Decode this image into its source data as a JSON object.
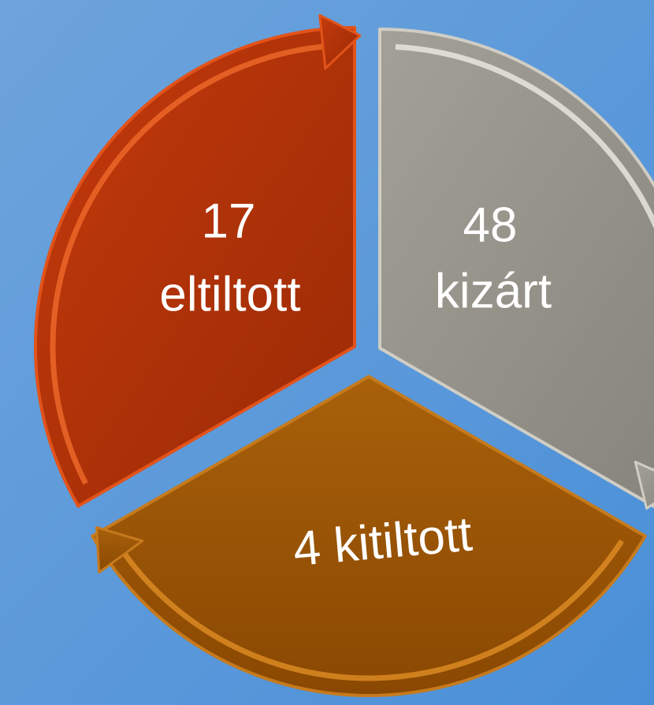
{
  "nodes": [
    {
      "lines": [
        "17",
        "eltiltott"
      ]
    },
    {
      "lines": [
        "48",
        "kizárt"
      ]
    },
    {
      "lines": [
        "4 kitiltott"
      ]
    }
  ]
}
